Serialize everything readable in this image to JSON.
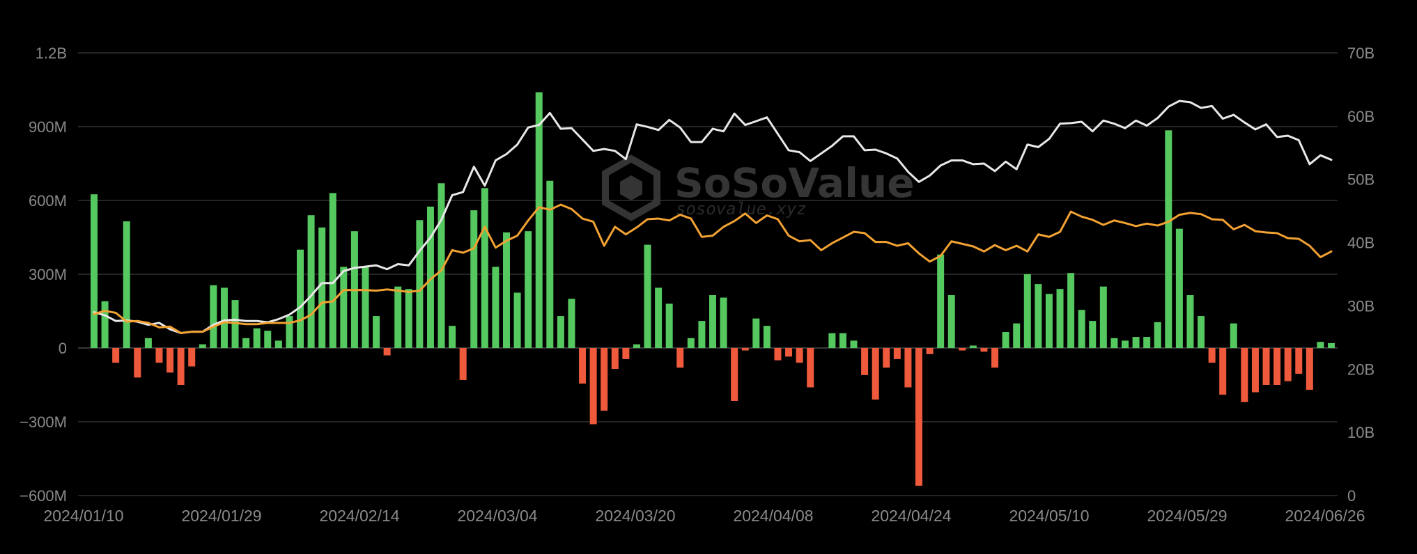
{
  "chart_data": {
    "type": "bar",
    "title": "",
    "xlabel": "",
    "ylabel": "",
    "y_left": {
      "lim": [
        -600000000,
        1200000000
      ],
      "ticks": [
        -600000000,
        -300000000,
        0,
        300000000,
        600000000,
        900000000,
        1200000000
      ],
      "tick_labels": [
        "−600M",
        "−300M",
        "0",
        "300M",
        "600M",
        "900M",
        "1.2B"
      ]
    },
    "y_right": {
      "lim": [
        0,
        70000000000
      ],
      "ticks": [
        0,
        10000000000,
        20000000000,
        30000000000,
        40000000000,
        50000000000,
        60000000000,
        70000000000
      ],
      "tick_labels": [
        "0",
        "10B",
        "20B",
        "30B",
        "40B",
        "50B",
        "60B",
        "70B"
      ]
    },
    "x_tick_labels": [
      "2024/01/10",
      "2024/01/29",
      "2024/02/14",
      "2024/03/04",
      "2024/03/20",
      "2024/04/08",
      "2024/04/24",
      "2024/05/10",
      "2024/05/29",
      "2024/06/26"
    ],
    "grid": true,
    "colors": {
      "inflow": "#55c95f",
      "outflow": "#f05a3c",
      "line_white": "#e8e8e8",
      "line_orange": "#f2a232"
    },
    "series": [
      {
        "kind": "bar",
        "axis": "left",
        "values": [
          625000000,
          190000000,
          -60000000,
          515000000,
          -120000000,
          40000000,
          -60000000,
          -100000000,
          -150000000,
          -75000000,
          15000000,
          255000000,
          245000000,
          195000000,
          40000000,
          80000000,
          70000000,
          30000000,
          130000000,
          400000000,
          540000000,
          490000000,
          630000000,
          330000000,
          475000000,
          330000000,
          130000000,
          -30000000,
          250000000,
          240000000,
          520000000,
          575000000,
          670000000,
          90000000,
          -130000000,
          560000000,
          650000000,
          330000000,
          470000000,
          225000000,
          475000000,
          1040000000,
          680000000,
          130000000,
          200000000,
          -145000000,
          -310000000,
          -255000000,
          -85000000,
          -45000000,
          15000000,
          420000000,
          245000000,
          180000000,
          -80000000,
          40000000,
          110000000,
          215000000,
          205000000,
          -215000000,
          -10000000,
          120000000,
          90000000,
          -50000000,
          -35000000,
          -60000000,
          -160000000,
          0,
          60000000,
          60000000,
          30000000,
          -110000000,
          -210000000,
          -80000000,
          -45000000,
          -160000000,
          -560000000,
          -25000000,
          380000000,
          215000000,
          -10000000,
          10000000,
          -15000000,
          -80000000,
          65000000,
          100000000,
          300000000,
          260000000,
          220000000,
          240000000,
          305000000,
          155000000,
          110000000,
          250000000,
          40000000,
          30000000,
          45000000,
          45000000,
          105000000,
          885000000,
          485000000,
          215000000,
          130000000,
          -60000000,
          -190000000,
          100000000,
          -220000000,
          -180000000,
          -150000000,
          -150000000,
          -135000000,
          -105000000,
          -170000000,
          25000000,
          20000000
        ]
      },
      {
        "kind": "line",
        "axis": "right",
        "color": "#e8e8e8",
        "values": [
          29000000000,
          28500000000,
          27600000000,
          27700000000,
          27500000000,
          27000000000,
          27300000000,
          26300000000,
          25700000000,
          25900000000,
          25900000000,
          27000000000,
          27700000000,
          27800000000,
          27600000000,
          27600000000,
          27400000000,
          27900000000,
          28600000000,
          29800000000,
          31600000000,
          33600000000,
          33600000000,
          35500000000,
          36000000000,
          36200000000,
          36400000000,
          35800000000,
          36600000000,
          36400000000,
          38700000000,
          40800000000,
          43600000000,
          47500000000,
          48000000000,
          52000000000,
          49000000000,
          53000000000,
          54000000000,
          55500000000,
          58200000000,
          58600000000,
          60500000000,
          58000000000,
          58100000000,
          56300000000,
          54500000000,
          54800000000,
          54500000000,
          53200000000,
          58700000000,
          58300000000,
          57800000000,
          59400000000,
          58200000000,
          55900000000,
          55900000000,
          58000000000,
          57600000000,
          60400000000,
          58600000000,
          59200000000,
          59800000000,
          57200000000,
          54600000000,
          54300000000,
          52900000000,
          54100000000,
          55300000000,
          56800000000,
          56800000000,
          54600000000,
          54700000000,
          54100000000,
          53300000000,
          51200000000,
          49600000000,
          50600000000,
          52200000000,
          53000000000,
          53000000000,
          52400000000,
          52500000000,
          51300000000,
          52800000000,
          51600000000,
          55500000000,
          55100000000,
          56400000000,
          58800000000,
          58900000000,
          59100000000,
          57600000000,
          59300000000,
          58800000000,
          58100000000,
          59300000000,
          58500000000,
          59700000000,
          61500000000,
          62400000000,
          62200000000,
          61300000000,
          61600000000,
          59600000000,
          60200000000,
          59000000000,
          57900000000,
          58700000000,
          56700000000,
          56900000000,
          56200000000,
          52400000000,
          53800000000,
          53100000000
        ]
      },
      {
        "kind": "line",
        "axis": "right",
        "color": "#f2a232",
        "values": [
          28700000000,
          29200000000,
          28900000000,
          27500000000,
          27600000000,
          27300000000,
          26600000000,
          26700000000,
          25700000000,
          25900000000,
          25900000000,
          26700000000,
          27400000000,
          27300000000,
          27100000000,
          27100000000,
          27300000000,
          27300000000,
          27300000000,
          27700000000,
          28600000000,
          30500000000,
          30700000000,
          32500000000,
          32500000000,
          32500000000,
          32400000000,
          32600000000,
          32400000000,
          32200000000,
          32400000000,
          34200000000,
          35600000000,
          38800000000,
          38400000000,
          39100000000,
          42500000000,
          39200000000,
          40300000000,
          41100000000,
          43500000000,
          45600000000,
          45200000000,
          46000000000,
          45300000000,
          43800000000,
          43300000000,
          39500000000,
          42500000000,
          41300000000,
          42400000000,
          43700000000,
          43800000000,
          43500000000,
          44400000000,
          43800000000,
          40900000000,
          41100000000,
          42500000000,
          43400000000,
          44600000000,
          43100000000,
          44300000000,
          43700000000,
          41100000000,
          40200000000,
          40400000000,
          38800000000,
          39900000000,
          40800000000,
          41700000000,
          41500000000,
          40100000000,
          40100000000,
          39500000000,
          39900000000,
          38300000000,
          37000000000,
          37900000000,
          40200000000,
          39800000000,
          39400000000,
          38600000000,
          39600000000,
          38800000000,
          39500000000,
          38600000000,
          41300000000,
          40900000000,
          41700000000,
          44900000000,
          44100000000,
          43600000000,
          42800000000,
          43500000000,
          43100000000,
          42600000000,
          43000000000,
          42700000000,
          43300000000,
          44400000000,
          44700000000,
          44500000000,
          43700000000,
          43600000000,
          42100000000,
          42800000000,
          41800000000,
          41600000000,
          41500000000,
          40700000000,
          40600000000,
          39500000000,
          37700000000,
          38600000000
        ]
      }
    ]
  },
  "watermark": {
    "brand": "SoSoValue",
    "url": "sosovalue.xyz"
  }
}
